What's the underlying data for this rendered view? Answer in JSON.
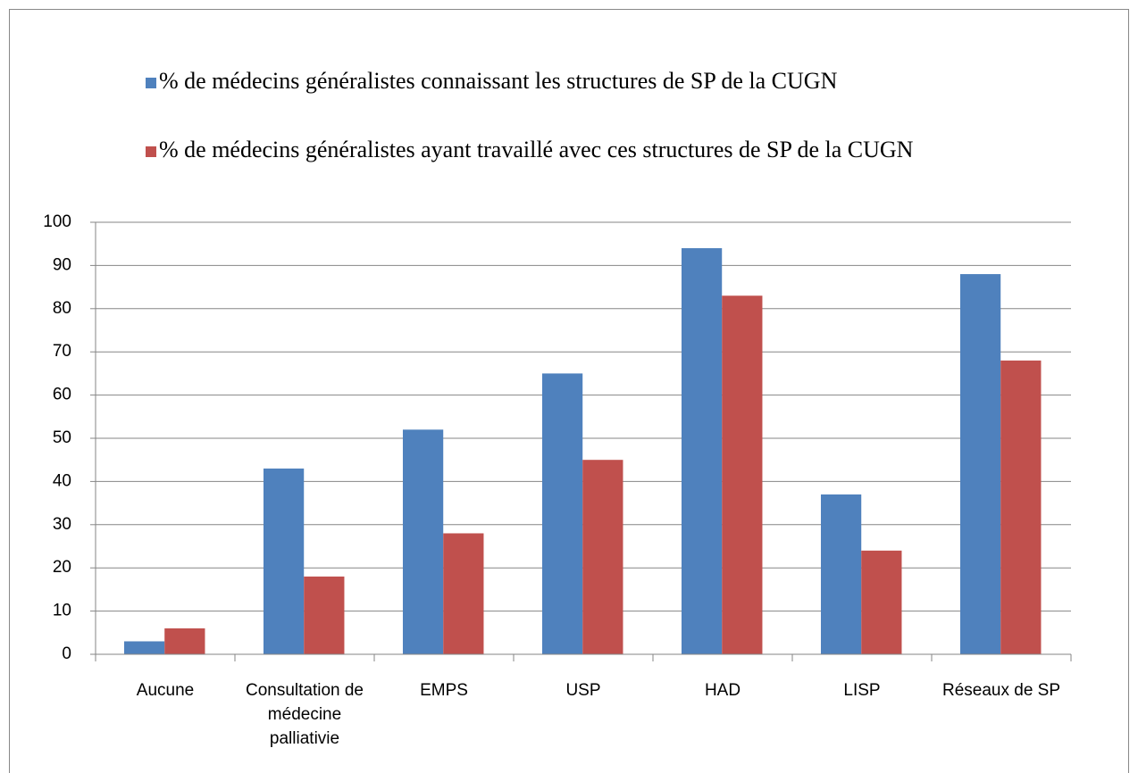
{
  "chart_data": {
    "type": "bar",
    "categories": [
      "Aucune",
      "Consultation de médecine palliativie",
      "EMPS",
      "USP",
      "HAD",
      "LISP",
      "Réseaux de SP"
    ],
    "series": [
      {
        "name": "% de médecins généralistes connaissant les structures de SP de la CUGN",
        "color": "#4f81bd",
        "values": [
          3,
          43,
          52,
          65,
          94,
          37,
          88
        ]
      },
      {
        "name": "% de médecins généralistes ayant travaillé avec ces structures de SP de la CUGN",
        "color": "#c0504d",
        "values": [
          6,
          18,
          28,
          45,
          83,
          24,
          68
        ]
      }
    ],
    "ylim": [
      0,
      100
    ],
    "yticks": [
      0,
      10,
      20,
      30,
      40,
      50,
      60,
      70,
      80,
      90,
      100
    ],
    "grid": true
  }
}
